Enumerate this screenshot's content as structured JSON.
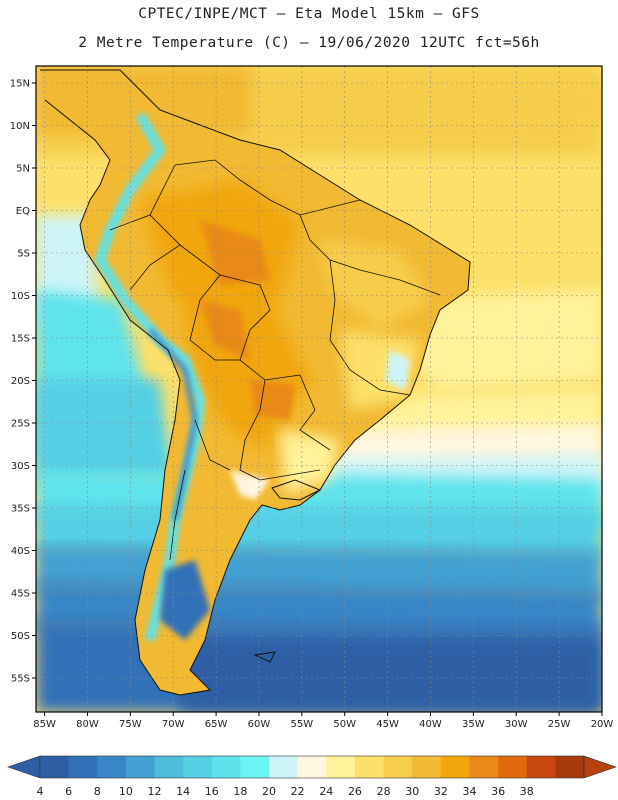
{
  "header": {
    "line1": "CPTEC/INPE/MCT –  Eta Model 15km – GFS",
    "line2": "2 Metre Temperature (C) – 19/06/2020 12UTC fct=56h"
  },
  "map": {
    "extent": {
      "lon_min": -86,
      "lon_max": -20,
      "lat_min": -59,
      "lat_max": 17
    },
    "lat_ticks": [
      15,
      10,
      5,
      0,
      -5,
      -10,
      -15,
      -20,
      -25,
      -30,
      -35,
      -40,
      -45,
      -50,
      -55
    ],
    "lat_labels": [
      "15N",
      "10N",
      "5N",
      "EQ",
      "5S",
      "10S",
      "15S",
      "20S",
      "25S",
      "30S",
      "35S",
      "40S",
      "45S",
      "50S",
      "55S"
    ],
    "lon_ticks": [
      -85,
      -80,
      -75,
      -70,
      -65,
      -60,
      -55,
      -50,
      -45,
      -40,
      -35,
      -30,
      -25,
      -20
    ],
    "lon_labels": [
      "85W",
      "80W",
      "75W",
      "70W",
      "65W",
      "60W",
      "55W",
      "50W",
      "45W",
      "40W",
      "35W",
      "30W",
      "25W",
      "20W"
    ],
    "grid": true,
    "field": "2 m temperature"
  },
  "colorbar": {
    "levels": [
      4,
      6,
      8,
      10,
      12,
      14,
      16,
      18,
      20,
      22,
      24,
      26,
      28,
      30,
      32,
      34,
      36,
      38
    ],
    "labels": [
      "4",
      "6",
      "8",
      "10",
      "12",
      "14",
      "16",
      "18",
      "20",
      "22",
      "24",
      "26",
      "28",
      "30",
      "32",
      "34",
      "36",
      "38"
    ],
    "colors": [
      "#2e5fa5",
      "#3171b8",
      "#3886c6",
      "#42a0d2",
      "#4fbcdc",
      "#55cfe4",
      "#5ee3ec",
      "#6af4f4",
      "#cdf4f8",
      "#fff6e0",
      "#fff29a",
      "#fce06a",
      "#f6cd4c",
      "#f2b932",
      "#f1a60c",
      "#e98916",
      "#e06a0e",
      "#c94710",
      "#a93a0e"
    ],
    "under_color": "#2e5fa5",
    "over_color": "#b8400f"
  }
}
